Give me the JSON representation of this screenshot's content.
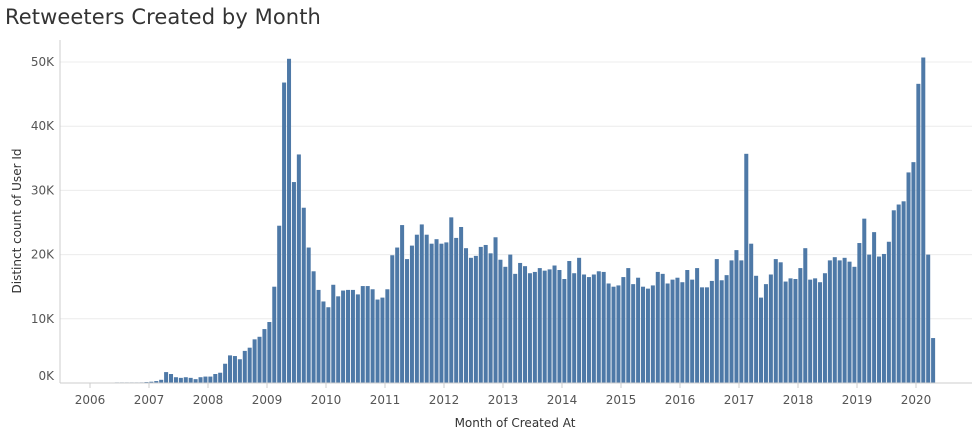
{
  "colors": {
    "bar": "#4e79a7",
    "grid": "#ececec",
    "axis": "#cccccc"
  },
  "chart_data": {
    "type": "bar",
    "title": "Retweeters Created by Month",
    "xlabel": "Month of Created At",
    "ylabel": "Distinct count of User Id",
    "x_axis": {
      "start": "2006-01",
      "end": "2020-12",
      "ticks": [
        "2006",
        "2007",
        "2008",
        "2009",
        "2010",
        "2011",
        "2012",
        "2013",
        "2014",
        "2015",
        "2016",
        "2017",
        "2018",
        "2019",
        "2020"
      ]
    },
    "y_axis": {
      "ylim": [
        0,
        52000
      ],
      "ticks": [
        0,
        10000,
        20000,
        30000,
        40000,
        50000
      ],
      "tick_labels": [
        "0K",
        "10K",
        "20K",
        "30K",
        "40K",
        "50K"
      ]
    },
    "grid": true,
    "series": [
      {
        "values": [
          {
            "month": "2006-06",
            "value": 30
          },
          {
            "month": "2006-07",
            "value": 40
          },
          {
            "month": "2006-08",
            "value": 50
          },
          {
            "month": "2006-09",
            "value": 60
          },
          {
            "month": "2006-10",
            "value": 80
          },
          {
            "month": "2006-11",
            "value": 100
          },
          {
            "month": "2006-12",
            "value": 150
          },
          {
            "month": "2007-01",
            "value": 200
          },
          {
            "month": "2007-02",
            "value": 300
          },
          {
            "month": "2007-03",
            "value": 500
          },
          {
            "month": "2007-04",
            "value": 1700
          },
          {
            "month": "2007-05",
            "value": 1400
          },
          {
            "month": "2007-06",
            "value": 900
          },
          {
            "month": "2007-07",
            "value": 800
          },
          {
            "month": "2007-08",
            "value": 900
          },
          {
            "month": "2007-09",
            "value": 800
          },
          {
            "month": "2007-10",
            "value": 600
          },
          {
            "month": "2007-11",
            "value": 900
          },
          {
            "month": "2007-12",
            "value": 1000
          },
          {
            "month": "2008-01",
            "value": 1000
          },
          {
            "month": "2008-02",
            "value": 1400
          },
          {
            "month": "2008-03",
            "value": 1600
          },
          {
            "month": "2008-04",
            "value": 3000
          },
          {
            "month": "2008-05",
            "value": 4300
          },
          {
            "month": "2008-06",
            "value": 4200
          },
          {
            "month": "2008-07",
            "value": 3700
          },
          {
            "month": "2008-08",
            "value": 5000
          },
          {
            "month": "2008-09",
            "value": 5500
          },
          {
            "month": "2008-10",
            "value": 6800
          },
          {
            "month": "2008-11",
            "value": 7200
          },
          {
            "month": "2008-12",
            "value": 8400
          },
          {
            "month": "2009-01",
            "value": 9500
          },
          {
            "month": "2009-02",
            "value": 15000
          },
          {
            "month": "2009-03",
            "value": 24500
          },
          {
            "month": "2009-04",
            "value": 46800
          },
          {
            "month": "2009-05",
            "value": 50500
          },
          {
            "month": "2009-06",
            "value": 31300
          },
          {
            "month": "2009-07",
            "value": 35600
          },
          {
            "month": "2009-08",
            "value": 27300
          },
          {
            "month": "2009-09",
            "value": 21100
          },
          {
            "month": "2009-10",
            "value": 17400
          },
          {
            "month": "2009-11",
            "value": 14500
          },
          {
            "month": "2009-12",
            "value": 12700
          },
          {
            "month": "2010-01",
            "value": 11800
          },
          {
            "month": "2010-02",
            "value": 15300
          },
          {
            "month": "2010-03",
            "value": 13500
          },
          {
            "month": "2010-04",
            "value": 14400
          },
          {
            "month": "2010-05",
            "value": 14500
          },
          {
            "month": "2010-06",
            "value": 14500
          },
          {
            "month": "2010-07",
            "value": 13800
          },
          {
            "month": "2010-08",
            "value": 15100
          },
          {
            "month": "2010-09",
            "value": 15100
          },
          {
            "month": "2010-10",
            "value": 14600
          },
          {
            "month": "2010-11",
            "value": 13000
          },
          {
            "month": "2010-12",
            "value": 13300
          },
          {
            "month": "2011-01",
            "value": 14600
          },
          {
            "month": "2011-02",
            "value": 19900
          },
          {
            "month": "2011-03",
            "value": 21100
          },
          {
            "month": "2011-04",
            "value": 24600
          },
          {
            "month": "2011-05",
            "value": 19300
          },
          {
            "month": "2011-06",
            "value": 21400
          },
          {
            "month": "2011-07",
            "value": 23100
          },
          {
            "month": "2011-08",
            "value": 24700
          },
          {
            "month": "2011-09",
            "value": 23100
          },
          {
            "month": "2011-10",
            "value": 21700
          },
          {
            "month": "2011-11",
            "value": 22400
          },
          {
            "month": "2011-12",
            "value": 21700
          },
          {
            "month": "2012-01",
            "value": 21900
          },
          {
            "month": "2012-02",
            "value": 25800
          },
          {
            "month": "2012-03",
            "value": 22600
          },
          {
            "month": "2012-04",
            "value": 24300
          },
          {
            "month": "2012-05",
            "value": 21000
          },
          {
            "month": "2012-06",
            "value": 19500
          },
          {
            "month": "2012-07",
            "value": 19800
          },
          {
            "month": "2012-08",
            "value": 21200
          },
          {
            "month": "2012-09",
            "value": 21500
          },
          {
            "month": "2012-10",
            "value": 20200
          },
          {
            "month": "2012-11",
            "value": 22700
          },
          {
            "month": "2012-12",
            "value": 19200
          },
          {
            "month": "2013-01",
            "value": 18100
          },
          {
            "month": "2013-02",
            "value": 20000
          },
          {
            "month": "2013-03",
            "value": 17000
          },
          {
            "month": "2013-04",
            "value": 18700
          },
          {
            "month": "2013-05",
            "value": 18200
          },
          {
            "month": "2013-06",
            "value": 17100
          },
          {
            "month": "2013-07",
            "value": 17300
          },
          {
            "month": "2013-08",
            "value": 17900
          },
          {
            "month": "2013-09",
            "value": 17500
          },
          {
            "month": "2013-10",
            "value": 17700
          },
          {
            "month": "2013-11",
            "value": 18300
          },
          {
            "month": "2013-12",
            "value": 17600
          },
          {
            "month": "2014-01",
            "value": 16200
          },
          {
            "month": "2014-02",
            "value": 19000
          },
          {
            "month": "2014-03",
            "value": 17100
          },
          {
            "month": "2014-04",
            "value": 19500
          },
          {
            "month": "2014-05",
            "value": 16900
          },
          {
            "month": "2014-06",
            "value": 16500
          },
          {
            "month": "2014-07",
            "value": 16900
          },
          {
            "month": "2014-08",
            "value": 17400
          },
          {
            "month": "2014-09",
            "value": 17300
          },
          {
            "month": "2014-10",
            "value": 15500
          },
          {
            "month": "2014-11",
            "value": 15000
          },
          {
            "month": "2014-12",
            "value": 15200
          },
          {
            "month": "2015-01",
            "value": 16500
          },
          {
            "month": "2015-02",
            "value": 17900
          },
          {
            "month": "2015-03",
            "value": 15400
          },
          {
            "month": "2015-04",
            "value": 16400
          },
          {
            "month": "2015-05",
            "value": 15000
          },
          {
            "month": "2015-06",
            "value": 14700
          },
          {
            "month": "2015-07",
            "value": 15200
          },
          {
            "month": "2015-08",
            "value": 17300
          },
          {
            "month": "2015-09",
            "value": 17000
          },
          {
            "month": "2015-10",
            "value": 15500
          },
          {
            "month": "2015-11",
            "value": 16100
          },
          {
            "month": "2015-12",
            "value": 16400
          },
          {
            "month": "2016-01",
            "value": 15700
          },
          {
            "month": "2016-02",
            "value": 17600
          },
          {
            "month": "2016-03",
            "value": 16100
          },
          {
            "month": "2016-04",
            "value": 17900
          },
          {
            "month": "2016-05",
            "value": 14900
          },
          {
            "month": "2016-06",
            "value": 14900
          },
          {
            "month": "2016-07",
            "value": 15900
          },
          {
            "month": "2016-08",
            "value": 19300
          },
          {
            "month": "2016-09",
            "value": 16000
          },
          {
            "month": "2016-10",
            "value": 16800
          },
          {
            "month": "2016-11",
            "value": 19100
          },
          {
            "month": "2016-12",
            "value": 20700
          },
          {
            "month": "2017-01",
            "value": 19100
          },
          {
            "month": "2017-02",
            "value": 35700
          },
          {
            "month": "2017-03",
            "value": 21700
          },
          {
            "month": "2017-04",
            "value": 16700
          },
          {
            "month": "2017-05",
            "value": 13300
          },
          {
            "month": "2017-06",
            "value": 15400
          },
          {
            "month": "2017-07",
            "value": 16900
          },
          {
            "month": "2017-08",
            "value": 19300
          },
          {
            "month": "2017-09",
            "value": 18800
          },
          {
            "month": "2017-10",
            "value": 15800
          },
          {
            "month": "2017-11",
            "value": 16300
          },
          {
            "month": "2017-12",
            "value": 16200
          },
          {
            "month": "2018-01",
            "value": 17900
          },
          {
            "month": "2018-02",
            "value": 21000
          },
          {
            "month": "2018-03",
            "value": 16100
          },
          {
            "month": "2018-04",
            "value": 16300
          },
          {
            "month": "2018-05",
            "value": 15700
          },
          {
            "month": "2018-06",
            "value": 17100
          },
          {
            "month": "2018-07",
            "value": 19100
          },
          {
            "month": "2018-08",
            "value": 19600
          },
          {
            "month": "2018-09",
            "value": 19100
          },
          {
            "month": "2018-10",
            "value": 19500
          },
          {
            "month": "2018-11",
            "value": 18900
          },
          {
            "month": "2018-12",
            "value": 18100
          },
          {
            "month": "2019-01",
            "value": 21800
          },
          {
            "month": "2019-02",
            "value": 25600
          },
          {
            "month": "2019-03",
            "value": 20000
          },
          {
            "month": "2019-04",
            "value": 23500
          },
          {
            "month": "2019-05",
            "value": 19700
          },
          {
            "month": "2019-06",
            "value": 20100
          },
          {
            "month": "2019-07",
            "value": 22000
          },
          {
            "month": "2019-08",
            "value": 26900
          },
          {
            "month": "2019-09",
            "value": 27800
          },
          {
            "month": "2019-10",
            "value": 28300
          },
          {
            "month": "2019-11",
            "value": 32800
          },
          {
            "month": "2019-12",
            "value": 34400
          },
          {
            "month": "2020-01",
            "value": 46600
          },
          {
            "month": "2020-02",
            "value": 50700
          },
          {
            "month": "2020-03",
            "value": 20000
          },
          {
            "month": "2020-04",
            "value": 7000
          }
        ]
      }
    ]
  }
}
